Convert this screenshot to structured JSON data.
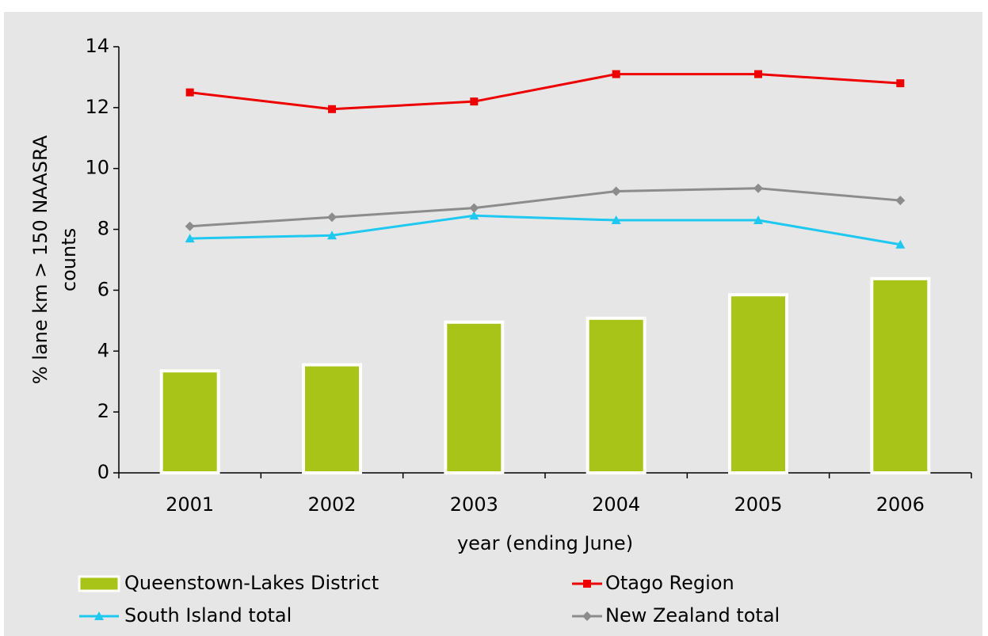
{
  "chart_data": {
    "type": "bar",
    "categories": [
      "2001",
      "2002",
      "2003",
      "2004",
      "2005",
      "2006"
    ],
    "xlabel": "year (ending June)",
    "ylabel": [
      "% lane km > 150 NAASRA",
      "counts"
    ],
    "ylim": [
      0,
      14
    ],
    "yticks": [
      0,
      2,
      4,
      6,
      8,
      10,
      12,
      14
    ],
    "series": [
      {
        "name": "Queenstown-Lakes District",
        "type": "bar",
        "color": "#a8c418",
        "values": [
          3.35,
          3.55,
          4.95,
          5.08,
          5.85,
          6.38
        ]
      },
      {
        "name": "Otago Region",
        "type": "line",
        "marker": "square",
        "color": "#ee0000",
        "values": [
          12.5,
          11.95,
          12.2,
          13.1,
          13.1,
          12.8
        ]
      },
      {
        "name": "South Island total",
        "type": "line",
        "marker": "triangle",
        "color": "#1ec8f0",
        "values": [
          7.7,
          7.8,
          8.45,
          8.3,
          8.3,
          7.5
        ]
      },
      {
        "name": "New Zealand total",
        "type": "line",
        "marker": "diamond",
        "color": "#8c8c8c",
        "values": [
          8.1,
          8.4,
          8.7,
          9.25,
          9.35,
          8.95
        ]
      }
    ]
  }
}
